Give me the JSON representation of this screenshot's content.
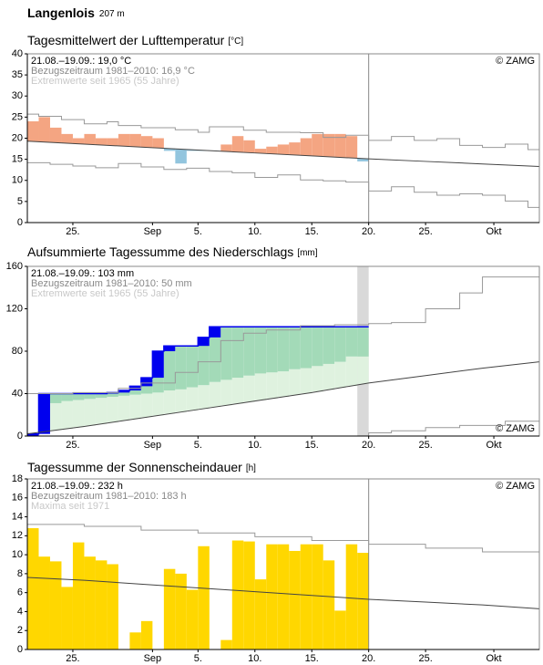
{
  "header": {
    "title": "Langenlois",
    "elevation": "207 m"
  },
  "chart_data": [
    {
      "type": "anomaly-bar",
      "title": "Tagesmittelwert der Lufttemperatur",
      "unit": "[°C]",
      "annotations": [
        "21.08.–19.09.: 19,0 °C",
        "Bezugszeitraum 1981–2010: 16,9 °C",
        "Extremwerte seit 1965 (55 Jahre)"
      ],
      "credit": "© ZAMG",
      "credit_corner": "top-right",
      "xlim": [
        0,
        45
      ],
      "ylim": [
        0,
        40
      ],
      "yticks": [
        0,
        5,
        10,
        15,
        20,
        25,
        30,
        35,
        40
      ],
      "xticks": [
        {
          "value": 4,
          "label": "25."
        },
        {
          "value": 11,
          "label": "Sep"
        },
        {
          "value": 15,
          "label": "5."
        },
        {
          "value": 20,
          "label": "10."
        },
        {
          "value": 25,
          "label": "15."
        },
        {
          "value": 30,
          "label": "20."
        },
        {
          "value": 35,
          "label": "25."
        },
        {
          "value": 41,
          "label": "Okt"
        }
      ],
      "bars": {
        "color": "#f4a582",
        "color_below": "#92c5de",
        "x": [
          0,
          1,
          2,
          3,
          4,
          5,
          6,
          7,
          8,
          9,
          10,
          11,
          12,
          13,
          14,
          15,
          16,
          17,
          18,
          19,
          20,
          21,
          22,
          23,
          24,
          25,
          26,
          27,
          28,
          29
        ],
        "values": [
          24,
          25,
          22.5,
          21,
          20,
          21,
          20,
          20,
          21,
          21,
          20.5,
          20,
          17,
          14,
          17,
          17,
          17,
          18.5,
          20.5,
          19.5,
          17.5,
          18,
          18.5,
          19,
          20,
          21,
          21,
          21,
          20.5,
          14.5
        ]
      },
      "normal": {
        "color": "#444444",
        "x": [
          0,
          5,
          10,
          15,
          20,
          25,
          30,
          35,
          40,
          45
        ],
        "values": [
          19.3,
          18.6,
          17.9,
          17.2,
          16.5,
          15.8,
          15.1,
          14.5,
          13.9,
          13.3
        ]
      },
      "extremes": [
        {
          "color": "#999999",
          "x": [
            0,
            1,
            3,
            5,
            7,
            8,
            10,
            13,
            15,
            16,
            19,
            21,
            24,
            26,
            28,
            30,
            32,
            34,
            36,
            38,
            40,
            42,
            44,
            45
          ],
          "values": [
            25.7,
            25.2,
            24.4,
            23.4,
            23.9,
            23,
            22.5,
            22,
            21.4,
            22.7,
            21.9,
            21.4,
            21.3,
            20.2,
            20.7,
            19.5,
            20.4,
            19.5,
            19.9,
            18.3,
            17.8,
            18.6,
            17.3,
            17.3
          ]
        },
        {
          "color": "#999999",
          "x": [
            0,
            2,
            4,
            6,
            8,
            10,
            12,
            14,
            16,
            18,
            20,
            22,
            24,
            26,
            28,
            30,
            32,
            34,
            36,
            38,
            40,
            42,
            44,
            45
          ],
          "values": [
            14.2,
            13.8,
            13.4,
            13,
            14,
            13.2,
            12.6,
            12.9,
            12.1,
            11.8,
            10.7,
            11.3,
            10.1,
            9.9,
            9.6,
            7.5,
            8.5,
            7.2,
            6.5,
            6.8,
            6.5,
            5.1,
            3.6,
            5.8
          ]
        }
      ]
    },
    {
      "type": "cumulative",
      "title": "Aufsummierte Tagessumme des Niederschlags",
      "unit": "[mm]",
      "annotations": [
        "21.08.–19.09.: 103 mm",
        "Bezugszeitraum 1981–2010: 50 mm",
        "Extremwerte seit 1965 (55 Jahre)"
      ],
      "credit": "© ZAMG",
      "credit_corner": "bottom-right",
      "xlim": [
        0,
        45
      ],
      "ylim": [
        0,
        160
      ],
      "yticks": [
        0,
        40,
        80,
        120,
        160
      ],
      "xticks": [
        {
          "value": 4,
          "label": "25."
        },
        {
          "value": 11,
          "label": "Sep"
        },
        {
          "value": 15,
          "label": "5."
        },
        {
          "value": 20,
          "label": "10."
        },
        {
          "value": 25,
          "label": "15."
        },
        {
          "value": 30,
          "label": "20."
        },
        {
          "value": 35,
          "label": "25."
        },
        {
          "value": 41,
          "label": "Okt"
        }
      ],
      "bars": {
        "color": "#0000ee",
        "x": [
          0,
          1,
          2,
          3,
          4,
          5,
          6,
          7,
          8,
          9,
          10,
          11,
          12,
          13,
          14,
          15,
          16,
          17,
          18,
          19,
          20,
          21,
          22,
          23,
          24,
          25,
          26,
          27,
          28,
          29
        ],
        "values": [
          2,
          40,
          40,
          40,
          40,
          40,
          40,
          41,
          43,
          47,
          55,
          80,
          85,
          85,
          85,
          93,
          103,
          103,
          103,
          103,
          103,
          103,
          103,
          103,
          103,
          103,
          103,
          103,
          103,
          103
        ]
      },
      "band": {
        "color": "#dff2df",
        "color_above": "#a3dab8",
        "x": [
          0,
          1,
          2,
          3,
          4,
          5,
          6,
          7,
          8,
          9,
          10,
          11,
          12,
          13,
          14,
          15,
          16,
          17,
          18,
          19,
          20,
          21,
          22,
          23,
          24,
          25,
          26,
          27,
          28,
          29
        ],
        "values": [
          25,
          27,
          31,
          33,
          34,
          35,
          36,
          37,
          38,
          39,
          40,
          41,
          43,
          44,
          46,
          48,
          51,
          53,
          55,
          57,
          59,
          60,
          61,
          63,
          64,
          66,
          68,
          70,
          75,
          75
        ]
      },
      "normal": {
        "color": "#444444",
        "x": [
          0,
          5,
          10,
          15,
          20,
          25,
          30,
          35,
          40,
          45
        ],
        "values": [
          2,
          9,
          17,
          25,
          33,
          41,
          50,
          57,
          64,
          70
        ]
      },
      "extremes": [
        {
          "color": "#999999",
          "x": [
            0,
            4,
            8,
            10,
            13,
            15,
            17,
            19,
            21,
            24,
            27,
            30,
            32,
            35,
            38,
            40,
            45
          ],
          "values": [
            40,
            41,
            45,
            50,
            60,
            70,
            90,
            97,
            100,
            104,
            105,
            106,
            107,
            120,
            135,
            150,
            155
          ]
        },
        {
          "color": "#999999",
          "x": [
            0,
            30,
            32,
            35,
            38,
            42,
            45
          ],
          "values": [
            0,
            3,
            5,
            8,
            10,
            14,
            14
          ]
        }
      ]
    },
    {
      "type": "bar",
      "title": "Tagessumme der Sonnenscheindauer",
      "unit": "[h]",
      "annotations": [
        "21.08.–19.09.: 232 h",
        "Bezugszeitraum 1981–2010: 183 h",
        "Maxima seit 1971"
      ],
      "credit": "© ZAMG",
      "credit_corner": "top-right",
      "xlim": [
        0,
        45
      ],
      "ylim": [
        0,
        18
      ],
      "yticks": [
        0,
        2,
        4,
        6,
        8,
        10,
        12,
        14,
        16,
        18
      ],
      "xticks": [
        {
          "value": 4,
          "label": "25."
        },
        {
          "value": 11,
          "label": "Sep"
        },
        {
          "value": 15,
          "label": "5."
        },
        {
          "value": 20,
          "label": "10."
        },
        {
          "value": 25,
          "label": "15."
        },
        {
          "value": 30,
          "label": "20."
        },
        {
          "value": 35,
          "label": "25."
        },
        {
          "value": 41,
          "label": "Okt"
        }
      ],
      "bars": {
        "color": "#ffd700",
        "x": [
          0,
          1,
          2,
          3,
          4,
          5,
          6,
          7,
          8,
          9,
          10,
          11,
          12,
          13,
          14,
          15,
          16,
          17,
          18,
          19,
          20,
          21,
          22,
          23,
          24,
          25,
          26,
          27,
          28,
          29
        ],
        "values": [
          12.8,
          9.8,
          9.3,
          6.6,
          11.3,
          9.8,
          9.4,
          9,
          0,
          1.8,
          3,
          0,
          8.5,
          8,
          6.3,
          10.9,
          0,
          1,
          11.5,
          11.4,
          7.4,
          11.1,
          11.1,
          10.4,
          11.1,
          11.1,
          9.4,
          4.1,
          11.1,
          10.2
        ]
      },
      "normal": {
        "color": "#444444",
        "x": [
          0,
          5,
          10,
          15,
          20,
          25,
          30,
          35,
          40,
          45
        ],
        "values": [
          7.6,
          7.3,
          6.9,
          6.5,
          6.1,
          5.7,
          5.3,
          5,
          4.7,
          4.3
        ]
      },
      "extremes": [
        {
          "color": "#999999",
          "x": [
            0,
            5,
            10,
            15,
            20,
            25,
            30,
            35,
            40,
            45
          ],
          "values": [
            13.2,
            13,
            12.6,
            12.3,
            11.9,
            11.5,
            11.1,
            10.7,
            10.3,
            9.9
          ]
        }
      ]
    }
  ]
}
